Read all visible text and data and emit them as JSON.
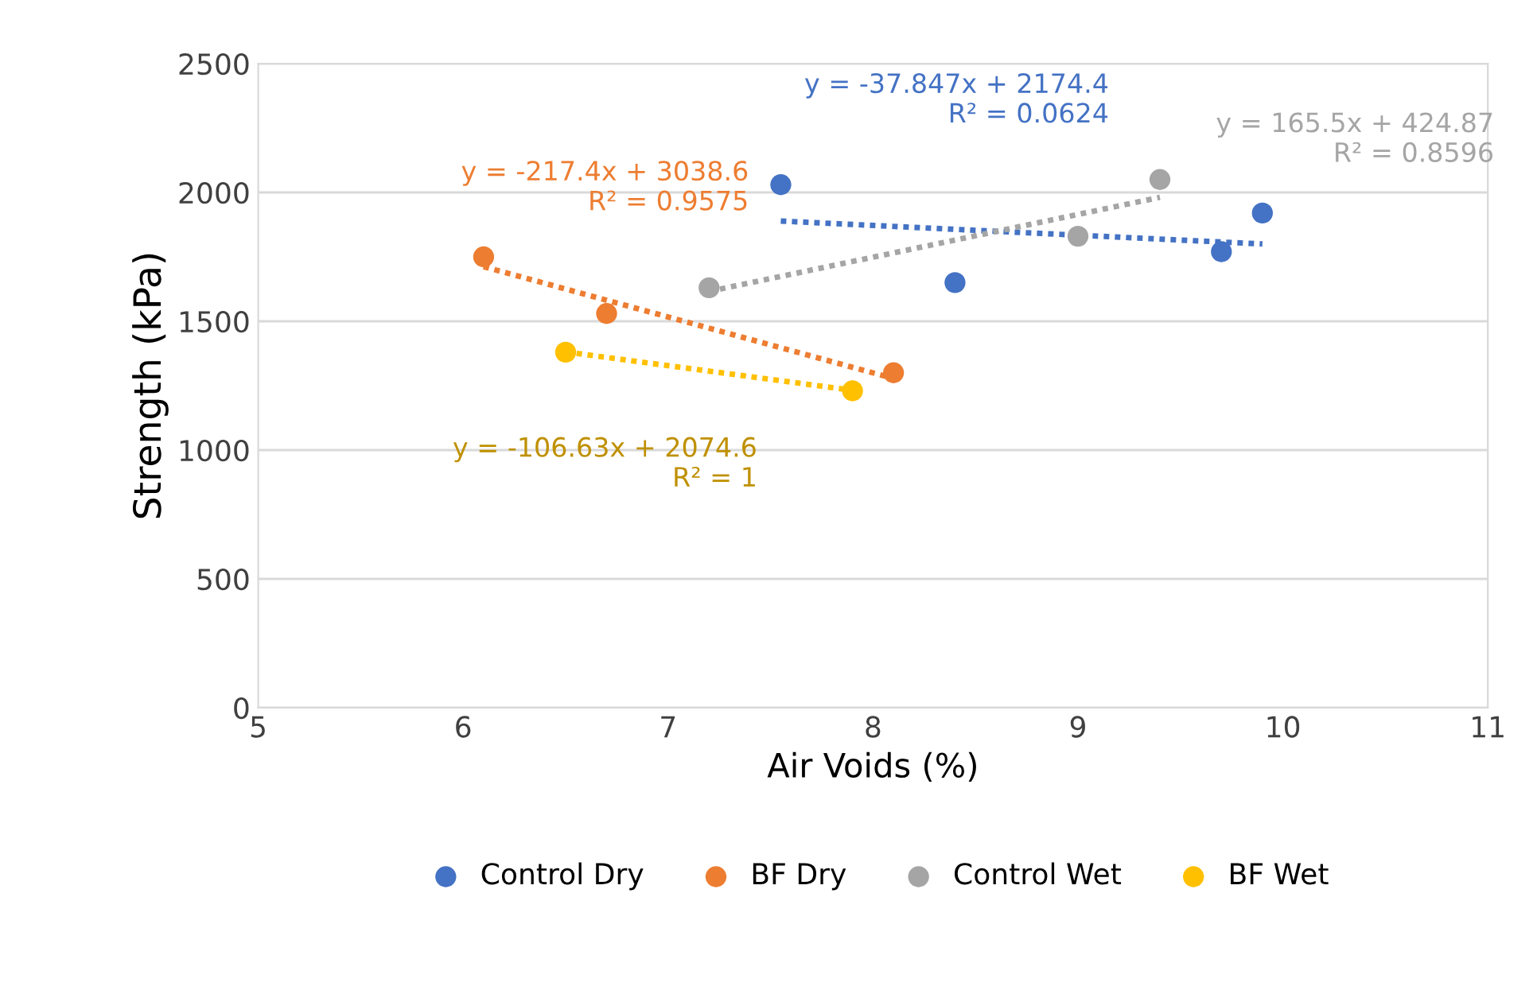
{
  "chart_data": {
    "type": "scatter",
    "xlabel": "Air Voids (%)",
    "ylabel": "Strength (kPa)",
    "xlim": [
      5,
      11
    ],
    "xticks": [
      5,
      6,
      7,
      8,
      9,
      10,
      11
    ],
    "ylim": [
      0,
      2500
    ],
    "yticks": [
      0,
      500,
      1000,
      1500,
      2000,
      2500
    ],
    "grid": "y",
    "legend": "bottom",
    "marker": "circle",
    "series": [
      {
        "name": "Control Dry",
        "color": "#4472c4",
        "x": [
          7.55,
          8.4,
          9.7,
          9.9
        ],
        "values": [
          2030,
          1650,
          1770,
          1920
        ]
      },
      {
        "name": "BF Dry",
        "color": "#ed7d31",
        "x": [
          6.1,
          6.7,
          8.1
        ],
        "values": [
          1750,
          1530,
          1300
        ]
      },
      {
        "name": "Control Wet",
        "color": "#a5a5a5",
        "x": [
          7.2,
          9.0,
          9.4
        ],
        "values": [
          1630,
          1830,
          2050
        ]
      },
      {
        "name": "BF Wet",
        "color": "#ffc000",
        "x": [
          6.5,
          7.9
        ],
        "values": [
          1380,
          1230
        ]
      },
      {
        "type": "line",
        "line_style": "dotted",
        "marker": "none",
        "color": "#4472c4",
        "x": [
          7.55,
          9.9
        ],
        "values": [
          1889,
          1800
        ]
      },
      {
        "type": "line",
        "line_style": "dotted",
        "marker": "none",
        "color": "#ed7d31",
        "x": [
          6.1,
          8.1
        ],
        "values": [
          1712,
          1278
        ]
      },
      {
        "type": "line",
        "line_style": "dotted",
        "marker": "none",
        "color": "#a5a5a5",
        "x": [
          7.2,
          9.4
        ],
        "values": [
          1616,
          1981
        ]
      },
      {
        "type": "line",
        "line_style": "dotted",
        "marker": "none",
        "color": "#ffc000",
        "x": [
          6.5,
          7.9
        ],
        "values": [
          1381,
          1232
        ]
      }
    ],
    "annotations": [
      "y = -37.847x + 2174.4\nR² = 0.0624",
      "y = -217.4x + 3038.6\nR² = 0.9575",
      "y = 165.5x + 424.87\nR² = 0.8596",
      "y = -106.63x + 2074.6\nR² = 1"
    ]
  }
}
